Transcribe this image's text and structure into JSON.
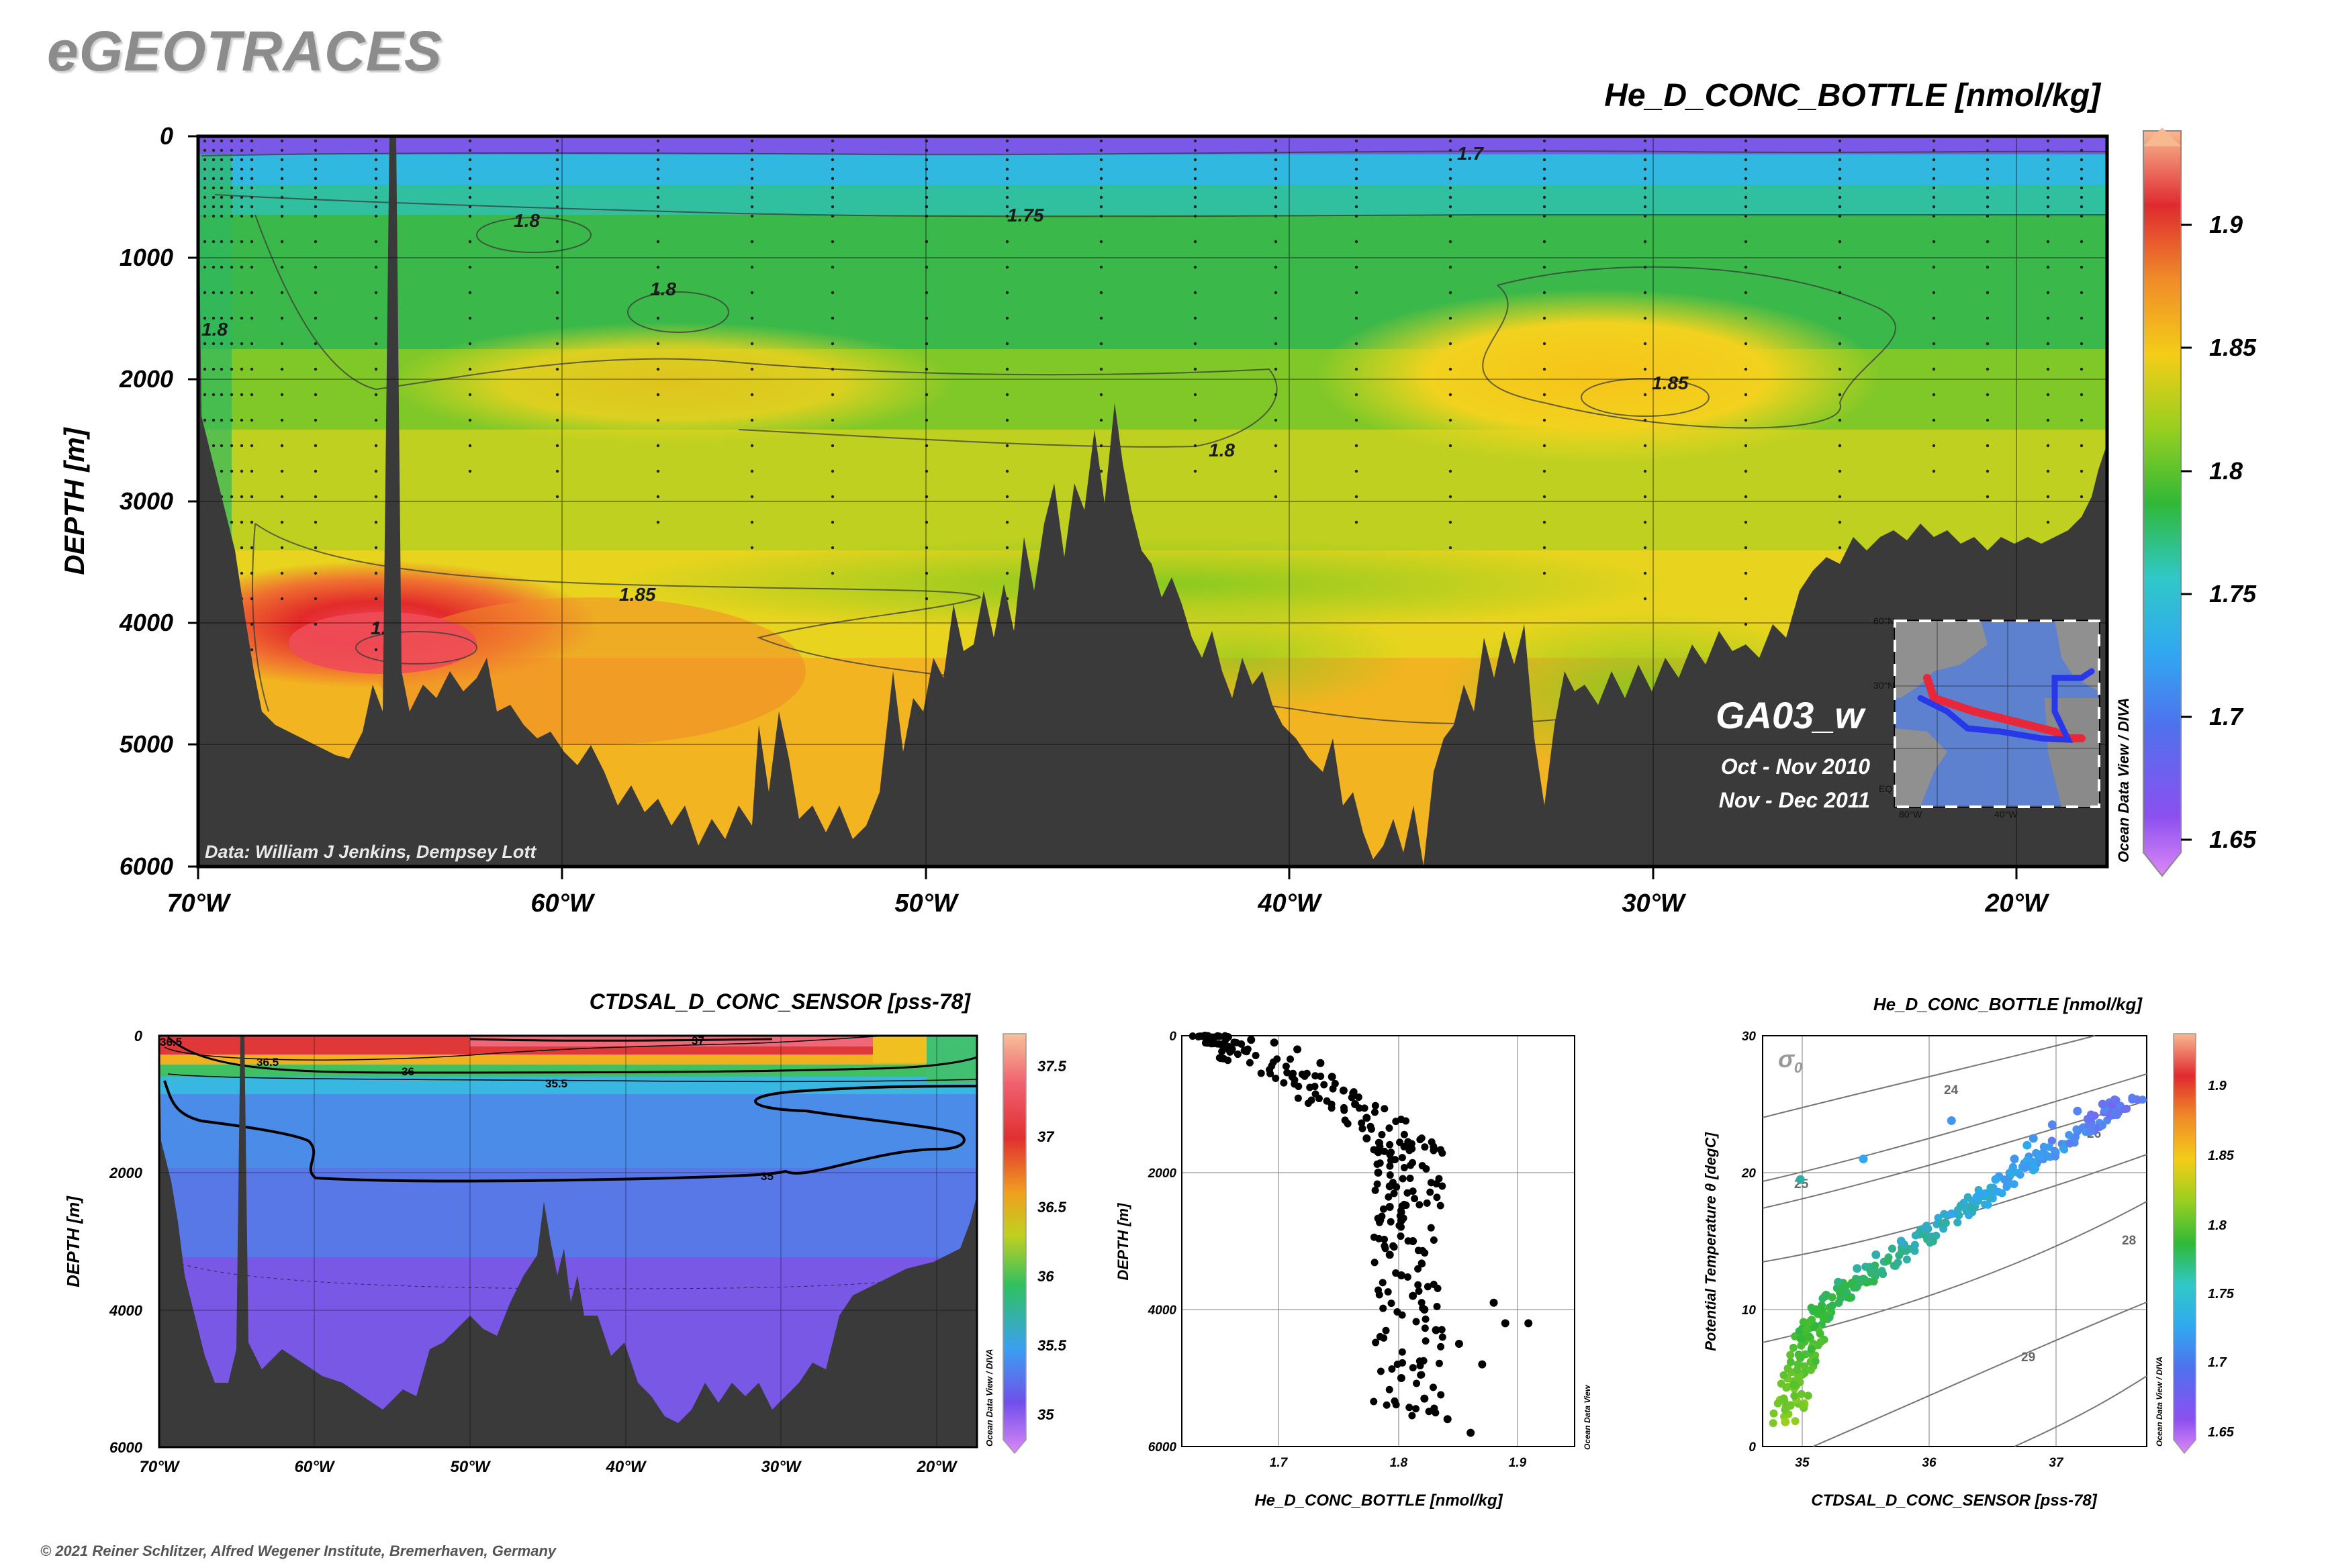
{
  "brand": "eGEOTRACES",
  "footer": "© 2021 Reiner Schlitzer, Alfred Wegener Institute, Bremerhaven, Germany",
  "ocean_data_view": "Ocean Data View / DIVA",
  "ocean_data_view_short": "Ocean Data View",
  "main_section": {
    "title": "He_D_CONC_BOTTLE [nmol/kg]",
    "ylabel": "DEPTH [m]",
    "y_ticks": [
      "0",
      "1000",
      "2000",
      "3000",
      "4000",
      "5000",
      "6000"
    ],
    "x_ticks": [
      "70°W",
      "60°W",
      "50°W",
      "40°W",
      "30°W",
      "20°W"
    ],
    "credit": "Data: William J Jenkins, Dempsey Lott",
    "cruise": "GA03_w",
    "dates": [
      "Oct - Nov 2010",
      "Nov - Dec 2011"
    ],
    "contour_labels": [
      "1.7",
      "1.75",
      "1.8",
      "1.8",
      "1.8",
      "1.8",
      "1.85",
      "1.85",
      "1.8"
    ],
    "colorbar_ticks": [
      "1.9",
      "1.85",
      "1.8",
      "1.75",
      "1.7",
      "1.65"
    ],
    "inset_labels": [
      "60°N",
      "30°N",
      "EQ",
      "80°W",
      "40°W"
    ]
  },
  "salinity_section": {
    "title": "CTDSAL_D_CONC_SENSOR [pss-78]",
    "ylabel": "DEPTH [m]",
    "y_ticks": [
      "0",
      "2000",
      "4000",
      "6000"
    ],
    "x_ticks": [
      "70°W",
      "60°W",
      "50°W",
      "40°W",
      "30°W",
      "20°W"
    ],
    "contour_labels": [
      "36.5",
      "36.5",
      "37",
      "36",
      "35.5",
      "35"
    ],
    "colorbar_ticks": [
      "37.5",
      "37",
      "36.5",
      "36",
      "35.5",
      "35"
    ]
  },
  "profile_plot": {
    "xlabel": "He_D_CONC_BOTTLE [nmol/kg]",
    "ylabel": "DEPTH [m]",
    "x_ticks": [
      "1.7",
      "1.8",
      "1.9"
    ],
    "y_ticks": [
      "0",
      "2000",
      "4000",
      "6000"
    ]
  },
  "ts_plot": {
    "title": "He_D_CONC_BOTTLE [nmol/kg]",
    "xlabel": "CTDSAL_D_CONC_SENSOR [pss-78]",
    "ylabel": "Potential Temperature θ [degC]",
    "x_ticks": [
      "35",
      "36",
      "37"
    ],
    "y_ticks": [
      "0",
      "10",
      "20",
      "30"
    ],
    "sigma_label": "σ",
    "sigma_sub": "0",
    "isopycnal_labels": [
      "24",
      "25",
      "26",
      "28",
      "29"
    ],
    "colorbar_ticks": [
      "1.9",
      "1.85",
      "1.8",
      "1.75",
      "1.7",
      "1.65"
    ]
  },
  "chart_data": [
    {
      "type": "heatmap",
      "title": "He_D_CONC_BOTTLE [nmol/kg]",
      "ylabel": "DEPTH [m]",
      "xlim": [
        -70,
        -17.5
      ],
      "ylim": [
        6000,
        0
      ],
      "colorbar_range": [
        1.635,
        1.935
      ],
      "contour_levels": [
        1.7,
        1.75,
        1.8,
        1.85
      ]
    },
    {
      "type": "heatmap",
      "title": "CTDSAL_D_CONC_SENSOR [pss-78]",
      "ylabel": "DEPTH [m]",
      "xlim": [
        -70,
        -17.5
      ],
      "ylim": [
        6000,
        0
      ],
      "colorbar_range": [
        34.8,
        37.8
      ],
      "contour_levels": [
        35,
        35.5,
        36,
        36.5,
        37
      ]
    },
    {
      "type": "scatter",
      "xlabel": "He_D_CONC_BOTTLE [nmol/kg]",
      "ylabel": "DEPTH [m]",
      "xlim": [
        1.62,
        1.96
      ],
      "ylim": [
        6000,
        0
      ],
      "x": [
        1.64,
        1.66,
        1.68,
        1.7,
        1.72,
        1.74,
        1.75,
        1.76,
        1.77,
        1.78,
        1.78,
        1.79,
        1.79,
        1.8,
        1.8,
        1.81,
        1.82,
        1.8,
        1.81,
        1.82,
        1.83,
        1.84,
        1.86,
        1.88,
        1.9,
        1.92,
        1.81,
        1.83,
        1.85,
        1.87,
        1.89
      ],
      "y": [
        0,
        20,
        60,
        100,
        200,
        400,
        600,
        800,
        1000,
        1200,
        1500,
        1700,
        2000,
        2200,
        2500,
        2700,
        3000,
        3200,
        3500,
        3800,
        4000,
        4300,
        4500,
        4800,
        4200,
        4200,
        5000,
        5300,
        5600,
        5800,
        3900
      ]
    },
    {
      "type": "scatter",
      "xlabel": "CTDSAL_D_CONC_SENSOR [pss-78]",
      "ylabel": "Potential Temperature θ [degC]",
      "xlim": [
        34.7,
        37.75
      ],
      "ylim": [
        0,
        30
      ],
      "x": [
        34.88,
        34.92,
        34.95,
        35.0,
        35.05,
        35.12,
        35.2,
        35.3,
        35.45,
        35.6,
        35.8,
        36.0,
        36.2,
        36.4,
        36.55,
        36.7,
        36.85,
        37.0,
        37.2,
        37.4,
        37.5,
        35.0,
        35.5,
        36.2,
        36.8,
        37.3
      ],
      "y": [
        1.8,
        3.0,
        4.5,
        6.5,
        8.5,
        10.0,
        11.0,
        12.0,
        13.0,
        14.0,
        15.0,
        16.0,
        17.0,
        18.2,
        19.5,
        21.0,
        22.5,
        23.5,
        24.5,
        25.0,
        25.3,
        19.5,
        21.0,
        23.8,
        22.0,
        23.0
      ],
      "colors": [
        1.8,
        1.78,
        1.77,
        1.76,
        1.76,
        1.75,
        1.74,
        1.73,
        1.72,
        1.72,
        1.71,
        1.71,
        1.7,
        1.7,
        1.7,
        1.69,
        1.69,
        1.68,
        1.68,
        1.67,
        1.67,
        1.72,
        1.7,
        1.69,
        1.7,
        1.68
      ]
    }
  ]
}
